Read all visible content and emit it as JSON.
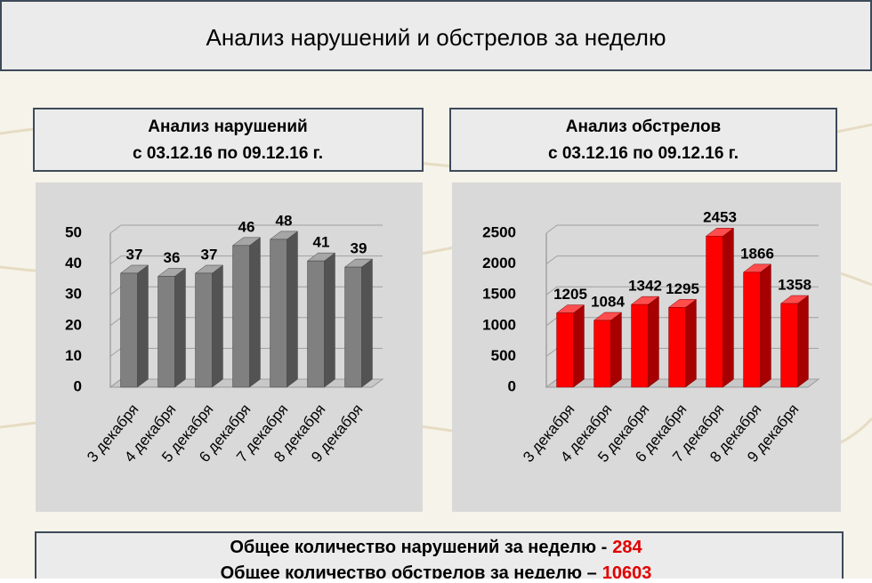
{
  "title": "Анализ нарушений и обстрелов за неделю",
  "chart_data": [
    {
      "type": "bar",
      "title": "Анализ нарушений",
      "subtitle": "с 03.12.16 по 09.12.16 г.",
      "categories": [
        "3 декабря",
        "4 декабря",
        "5 декабря",
        "6 декабря",
        "7 декабря",
        "8 декабря",
        "9 декабря"
      ],
      "values": [
        37,
        36,
        37,
        46,
        48,
        41,
        39
      ],
      "color": "#808080",
      "ylim": [
        0,
        50
      ],
      "yticks": [
        0,
        10,
        20,
        30,
        40,
        50
      ],
      "grid": true
    },
    {
      "type": "bar",
      "title": "Анализ обстрелов",
      "subtitle": "с 03.12.16 по 09.12.16 г.",
      "categories": [
        "3 декабря",
        "4 декабря",
        "5 декабря",
        "6 декабря",
        "7 декабря",
        "8 декабря",
        "9 декабря"
      ],
      "values": [
        1205,
        1084,
        1342,
        1295,
        2453,
        1866,
        1358
      ],
      "color": "#ff0000",
      "ylim": [
        0,
        2500
      ],
      "yticks": [
        0,
        500,
        1000,
        1500,
        2000,
        2500
      ],
      "grid": true
    }
  ],
  "summary": [
    {
      "text": "Общее количество нарушений за неделю -",
      "value": 284
    },
    {
      "text": "Общее количество обстрелов за неделю –",
      "value": 10603
    }
  ]
}
